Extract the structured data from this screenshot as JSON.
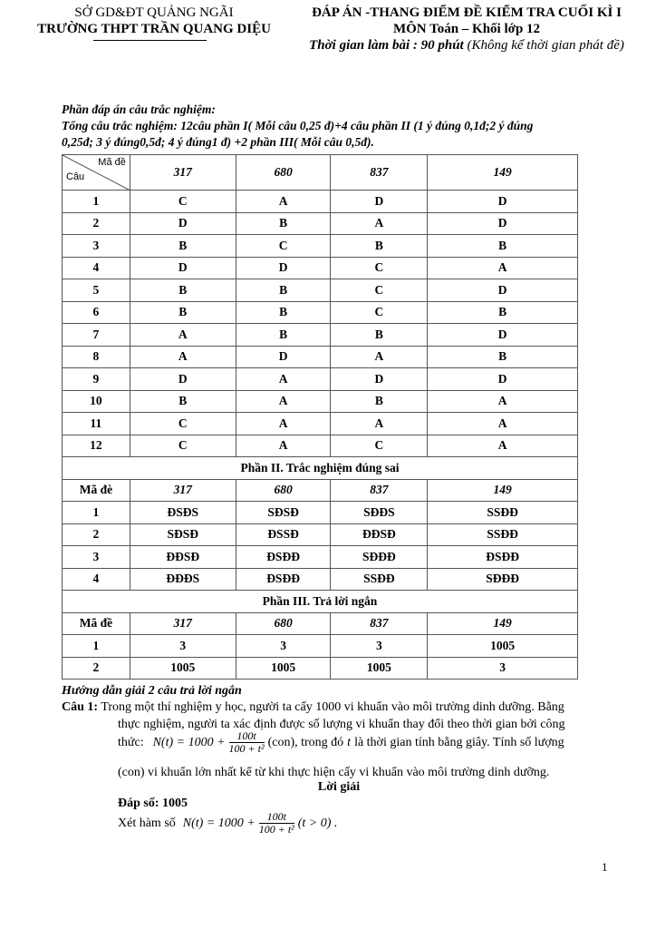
{
  "header": {
    "left_line1": "SỞ GD&ĐT QUẢNG NGÃI",
    "left_line2": "TRƯỜNG THPT TRẦN QUANG DIỆU",
    "right_line1": "ĐÁP ÁN -THANG ĐIỂM ĐỀ KIỂM TRA CUỐI KÌ I",
    "right_line2": "MÔN Toán – Khối lớp 12",
    "time_bold": "Thời gian làm bài : 90 phút",
    "time_note": "(Không kể thời gian phát đề)"
  },
  "intro": {
    "title": "Phần đáp án câu trắc nghiệm:",
    "line1": "Tổng câu trắc nghiệm: 12câu phần I( Mỗi câu 0,25 đ)+4 câu phần II (1 ý đúng 0,1đ;2 ý đúng",
    "line2": "0,25đ; 3 ý đúng0,5đ; 4 ý đúng1 đ) +2 phần III( Mỗi câu 0,5đ)."
  },
  "table": {
    "corner_top": "Mã đề",
    "corner_bottom": "Câu",
    "codes": [
      "317",
      "680",
      "837",
      "149"
    ],
    "part1": [
      [
        "1",
        "C",
        "A",
        "D",
        "D"
      ],
      [
        "2",
        "D",
        "B",
        "A",
        "D"
      ],
      [
        "3",
        "B",
        "C",
        "B",
        "B"
      ],
      [
        "4",
        "D",
        "D",
        "C",
        "A"
      ],
      [
        "5",
        "B",
        "B",
        "C",
        "D"
      ],
      [
        "6",
        "B",
        "B",
        "C",
        "B"
      ],
      [
        "7",
        "A",
        "B",
        "B",
        "D"
      ],
      [
        "8",
        "A",
        "D",
        "A",
        "B"
      ],
      [
        "9",
        "D",
        "A",
        "D",
        "D"
      ],
      [
        "10",
        "B",
        "A",
        "B",
        "A"
      ],
      [
        "11",
        "C",
        "A",
        "A",
        "A"
      ],
      [
        "12",
        "C",
        "A",
        "C",
        "A"
      ]
    ],
    "part2_title": "Phần II. Trắc nghiệm đúng sai",
    "part2_header": "Mã đè",
    "part2": [
      [
        "1",
        "ĐSĐS",
        "SĐSĐ",
        "SĐĐS",
        "SSĐĐ"
      ],
      [
        "2",
        "SĐSĐ",
        "ĐSSĐ",
        "ĐĐSĐ",
        "SSĐĐ"
      ],
      [
        "3",
        "ĐĐSĐ",
        "ĐSĐĐ",
        "SĐĐĐ",
        "ĐSĐĐ"
      ],
      [
        "4",
        "ĐĐĐS",
        "ĐSĐĐ",
        "SSĐĐ",
        "SĐĐĐ"
      ]
    ],
    "part3_title": "Phần III. Trả lời ngắn",
    "part3_header": "Mã đề",
    "part3": [
      [
        "1",
        "3",
        "3",
        "3",
        "1005"
      ],
      [
        "2",
        "1005",
        "1005",
        "1005",
        "3"
      ]
    ]
  },
  "solution": {
    "title": "Hướng dẫn giải 2 câu trả lời ngắn",
    "q1_label": "Câu 1:",
    "q1_line1": "Trong một thí nghiệm y học, người ta cấy 1000 vi khuẩn vào môi trường dinh dưỡng. Bằng",
    "q1_line2": "thực nghiệm, người ta xác định được số lượng vi khuẩn thay đổi theo thời gian bởi công",
    "q1_line3a": "thức:",
    "formula_lhs": "N(t) = 1000 +",
    "formula_num": "100t",
    "formula_den": "100 + t²",
    "q1_line3b": "(con), trong đó",
    "q1_t": "t",
    "q1_line3c": "là thời gian tính bằng giây. Tính số lượng",
    "q1_line4": "(con) vi khuẩn lớn nhất kể từ khi thực hiện cấy vi khuẩn vào môi trường dinh dưỡng.",
    "loigiai": "Lời giải",
    "answer": "Đáp số: 1005",
    "xet_a": "Xét hàm số",
    "xet_lhs": "N(t) = 1000 +",
    "xet_num": "100t",
    "xet_den": "100 + t²",
    "xet_cond": "(t > 0) ."
  },
  "page_number": "1"
}
